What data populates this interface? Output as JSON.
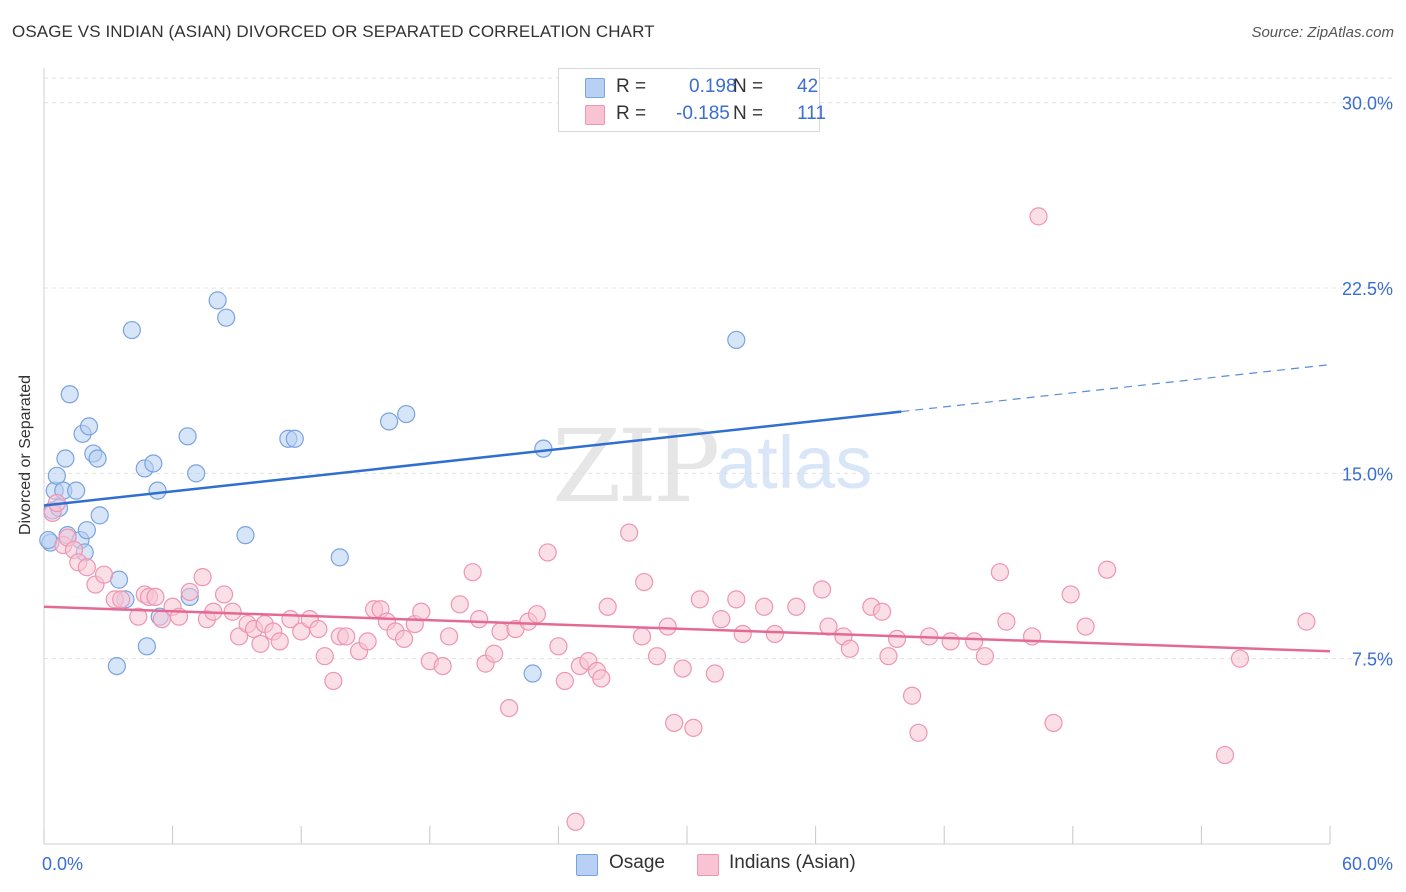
{
  "title": "OSAGE VS INDIAN (ASIAN) DIVORCED OR SEPARATED CORRELATION CHART",
  "source": "Source: ZipAtlas.com",
  "watermark": {
    "zip": "ZIP",
    "atlas": "atlas"
  },
  "stats": [
    {
      "r_label": "R =",
      "r_value": "0.198",
      "n_label": "N =",
      "n_value": "42"
    },
    {
      "r_label": "R =",
      "r_value": "-0.185",
      "n_label": "N =",
      "n_value": "111"
    }
  ],
  "legend": [
    {
      "label": "Osage"
    },
    {
      "label": "Indians (Asian)"
    }
  ],
  "colors": {
    "osage_fill": "#b7d0f3",
    "osage_stroke": "#7aa3e0",
    "osage_line": "#2f6fd0",
    "indian_fill": "#f8c4d4",
    "indian_stroke": "#ee95b2",
    "indian_line": "#e46a95",
    "axis_label": "#3a6fd0",
    "grid": "#e0e0e0"
  },
  "chart_data": {
    "type": "scatter",
    "title": "OSAGE VS INDIAN (ASIAN) DIVORCED OR SEPARATED CORRELATION CHART",
    "xlabel": "",
    "ylabel": "Divorced or Separated",
    "xlim": [
      0,
      60
    ],
    "ylim": [
      0,
      31
    ],
    "x_tick_labels": [
      "0.0%",
      "60.0%"
    ],
    "y_ticks": [
      7.5,
      15.0,
      22.5,
      30.0
    ],
    "y_tick_labels": [
      "7.5%",
      "15.0%",
      "22.5%",
      "30.0%"
    ],
    "grid": "horizontal dashed",
    "legend_placement": "bottom-center",
    "series": [
      {
        "name": "Osage",
        "points": [
          [
            0.3,
            12.2
          ],
          [
            0.4,
            13.5
          ],
          [
            0.5,
            14.3
          ],
          [
            0.6,
            14.9
          ],
          [
            0.7,
            13.6
          ],
          [
            0.9,
            14.3
          ],
          [
            1.0,
            15.6
          ],
          [
            1.1,
            12.5
          ],
          [
            1.2,
            18.2
          ],
          [
            1.5,
            14.3
          ],
          [
            1.7,
            12.3
          ],
          [
            1.8,
            16.6
          ],
          [
            1.9,
            11.8
          ],
          [
            2.0,
            12.7
          ],
          [
            2.1,
            16.9
          ],
          [
            2.3,
            15.8
          ],
          [
            2.5,
            15.6
          ],
          [
            2.6,
            13.3
          ],
          [
            3.4,
            7.2
          ],
          [
            3.5,
            10.7
          ],
          [
            3.8,
            9.9
          ],
          [
            4.1,
            20.8
          ],
          [
            4.7,
            15.2
          ],
          [
            4.8,
            8.0
          ],
          [
            5.1,
            15.4
          ],
          [
            5.3,
            14.3
          ],
          [
            5.4,
            9.2
          ],
          [
            6.7,
            16.5
          ],
          [
            6.8,
            10.0
          ],
          [
            7.1,
            15.0
          ],
          [
            8.1,
            22.0
          ],
          [
            8.5,
            21.3
          ],
          [
            9.4,
            12.5
          ],
          [
            11.4,
            16.4
          ],
          [
            11.7,
            16.4
          ],
          [
            13.8,
            11.6
          ],
          [
            16.1,
            17.1
          ],
          [
            16.9,
            17.4
          ],
          [
            22.8,
            6.9
          ],
          [
            23.3,
            16.0
          ],
          [
            32.3,
            20.4
          ],
          [
            0.2,
            12.3
          ]
        ]
      },
      {
        "name": "Indians (Asian)",
        "points": [
          [
            0.4,
            13.4
          ],
          [
            0.6,
            13.8
          ],
          [
            0.9,
            12.1
          ],
          [
            1.1,
            12.4
          ],
          [
            1.4,
            11.9
          ],
          [
            1.6,
            11.4
          ],
          [
            2.0,
            11.2
          ],
          [
            2.4,
            10.5
          ],
          [
            2.8,
            10.9
          ],
          [
            3.3,
            9.9
          ],
          [
            3.6,
            9.9
          ],
          [
            4.4,
            9.2
          ],
          [
            4.7,
            10.1
          ],
          [
            4.9,
            10.0
          ],
          [
            5.2,
            10.0
          ],
          [
            5.5,
            9.1
          ],
          [
            6.0,
            9.6
          ],
          [
            6.3,
            9.2
          ],
          [
            6.8,
            10.2
          ],
          [
            7.4,
            10.8
          ],
          [
            7.6,
            9.1
          ],
          [
            7.9,
            9.4
          ],
          [
            8.4,
            10.1
          ],
          [
            8.8,
            9.4
          ],
          [
            9.1,
            8.4
          ],
          [
            9.5,
            8.9
          ],
          [
            9.8,
            8.7
          ],
          [
            10.1,
            8.1
          ],
          [
            10.3,
            8.9
          ],
          [
            10.7,
            8.6
          ],
          [
            11.0,
            8.2
          ],
          [
            11.5,
            9.1
          ],
          [
            12.0,
            8.6
          ],
          [
            12.4,
            9.1
          ],
          [
            12.8,
            8.7
          ],
          [
            13.1,
            7.6
          ],
          [
            13.5,
            6.6
          ],
          [
            13.8,
            8.4
          ],
          [
            14.1,
            8.4
          ],
          [
            14.7,
            7.8
          ],
          [
            15.1,
            8.2
          ],
          [
            15.4,
            9.5
          ],
          [
            15.7,
            9.5
          ],
          [
            16.0,
            9.0
          ],
          [
            16.4,
            8.6
          ],
          [
            16.8,
            8.3
          ],
          [
            17.3,
            8.9
          ],
          [
            17.6,
            9.4
          ],
          [
            18.0,
            7.4
          ],
          [
            18.6,
            7.2
          ],
          [
            18.9,
            8.4
          ],
          [
            19.4,
            9.7
          ],
          [
            20.0,
            11.0
          ],
          [
            20.3,
            9.1
          ],
          [
            20.6,
            7.3
          ],
          [
            21.0,
            7.7
          ],
          [
            21.3,
            8.6
          ],
          [
            21.7,
            5.5
          ],
          [
            22.0,
            8.7
          ],
          [
            22.6,
            9.0
          ],
          [
            23.0,
            9.3
          ],
          [
            23.5,
            11.8
          ],
          [
            24.0,
            8.0
          ],
          [
            24.3,
            6.6
          ],
          [
            25.0,
            7.2
          ],
          [
            25.4,
            7.4
          ],
          [
            25.8,
            7.0
          ],
          [
            26.0,
            6.7
          ],
          [
            26.3,
            9.6
          ],
          [
            27.3,
            12.6
          ],
          [
            27.9,
            8.4
          ],
          [
            28.0,
            10.6
          ],
          [
            28.6,
            7.6
          ],
          [
            29.1,
            8.8
          ],
          [
            29.4,
            4.9
          ],
          [
            29.8,
            7.1
          ],
          [
            30.3,
            4.7
          ],
          [
            30.6,
            9.9
          ],
          [
            31.3,
            6.9
          ],
          [
            31.6,
            9.1
          ],
          [
            32.3,
            9.9
          ],
          [
            32.6,
            8.5
          ],
          [
            33.6,
            9.6
          ],
          [
            34.1,
            8.5
          ],
          [
            35.1,
            9.6
          ],
          [
            36.3,
            10.3
          ],
          [
            36.6,
            8.8
          ],
          [
            37.3,
            8.4
          ],
          [
            37.6,
            7.9
          ],
          [
            38.6,
            9.6
          ],
          [
            39.1,
            9.4
          ],
          [
            39.4,
            7.6
          ],
          [
            39.8,
            8.3
          ],
          [
            40.5,
            6.0
          ],
          [
            40.8,
            4.5
          ],
          [
            41.3,
            8.4
          ],
          [
            42.3,
            8.2
          ],
          [
            43.4,
            8.2
          ],
          [
            43.9,
            7.6
          ],
          [
            44.6,
            11.0
          ],
          [
            44.9,
            9.0
          ],
          [
            46.1,
            8.4
          ],
          [
            47.1,
            4.9
          ],
          [
            46.4,
            25.4
          ],
          [
            47.9,
            10.1
          ],
          [
            48.6,
            8.8
          ],
          [
            49.6,
            11.1
          ],
          [
            55.1,
            3.6
          ],
          [
            55.8,
            7.5
          ],
          [
            58.9,
            9.0
          ],
          [
            24.8,
            0.9
          ]
        ]
      }
    ],
    "trend_lines": [
      {
        "name": "Osage",
        "from": [
          0.0,
          13.7
        ],
        "to": [
          40.0,
          17.5
        ],
        "dashed_to": [
          60.0,
          19.4
        ]
      },
      {
        "name": "Indians (Asian)",
        "from": [
          0.0,
          9.6
        ],
        "to": [
          60.0,
          7.8
        ]
      }
    ]
  }
}
